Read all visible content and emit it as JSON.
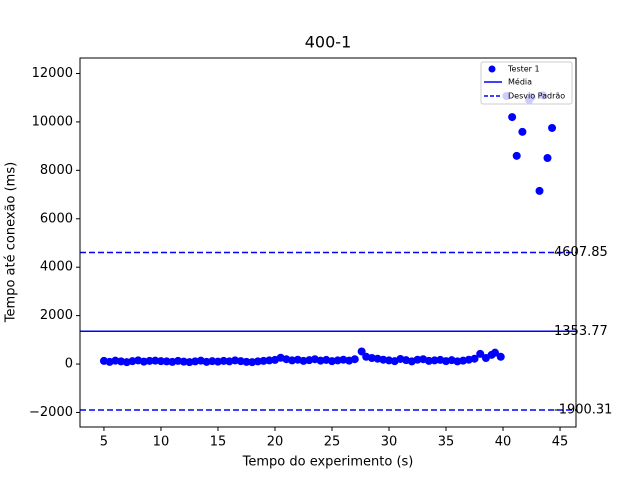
{
  "chart_data": {
    "type": "scatter",
    "title": "400-1",
    "xlabel": "Tempo do experimento (s)",
    "ylabel": "Tempo até conexão (ms)",
    "xlim": [
      2.9,
      46.4
    ],
    "ylim": [
      -2600,
      12640
    ],
    "xticks": [
      5,
      10,
      15,
      20,
      25,
      30,
      35,
      40,
      45
    ],
    "yticks": [
      {
        "value": -2000,
        "label": "−2000"
      },
      0,
      2000,
      4000,
      6000,
      8000,
      10000,
      12000
    ],
    "legend": "upper right",
    "series": [
      {
        "name": "Tester 1",
        "color": "#0000ff",
        "x": [
          5.0,
          5.5,
          6.0,
          6.5,
          7.0,
          7.5,
          8.0,
          8.5,
          9.0,
          9.5,
          10.0,
          10.5,
          11.0,
          11.5,
          12.0,
          12.5,
          13.0,
          13.5,
          14.0,
          14.5,
          15.0,
          15.5,
          16.0,
          16.5,
          17.0,
          17.5,
          18.0,
          18.5,
          19.0,
          19.5,
          20.0,
          20.5,
          21.0,
          21.5,
          22.0,
          22.5,
          23.0,
          23.5,
          24.0,
          24.5,
          25.0,
          25.5,
          26.0,
          26.5,
          27.0,
          27.6,
          28.0,
          28.5,
          29.0,
          29.5,
          30.0,
          30.5,
          31.0,
          31.5,
          32.0,
          32.5,
          33.0,
          33.5,
          34.0,
          34.5,
          35.0,
          35.5,
          36.0,
          36.5,
          37.0,
          37.5,
          38.0,
          38.5,
          39.0,
          39.3,
          39.8,
          40.3,
          40.8,
          41.2,
          41.7,
          42.3,
          42.5,
          43.2,
          43.5,
          43.9,
          44.3
        ],
        "values": [
          130,
          90,
          140,
          110,
          80,
          120,
          150,
          100,
          130,
          140,
          120,
          110,
          90,
          130,
          100,
          80,
          110,
          140,
          90,
          120,
          100,
          130,
          110,
          150,
          120,
          90,
          80,
          110,
          130,
          150,
          170,
          260,
          200,
          150,
          180,
          130,
          160,
          200,
          140,
          170,
          120,
          150,
          180,
          140,
          200,
          520,
          300,
          250,
          220,
          180,
          150,
          120,
          210,
          160,
          110,
          180,
          200,
          130,
          150,
          170,
          120,
          160,
          110,
          140,
          180,
          220,
          420,
          250,
          380,
          470,
          300,
          11070,
          10200,
          8600,
          9590,
          10900,
          11030,
          7150,
          11100,
          8510,
          9750
        ]
      }
    ],
    "hlines": [
      {
        "name": "Média",
        "color": "#0000ff",
        "dashed": false,
        "values": [
          1353.77
        ]
      },
      {
        "name": "Desvio Padrão",
        "color": "#0000ff",
        "dashed": true,
        "values": [
          4607.85,
          -1900.31
        ]
      }
    ]
  }
}
